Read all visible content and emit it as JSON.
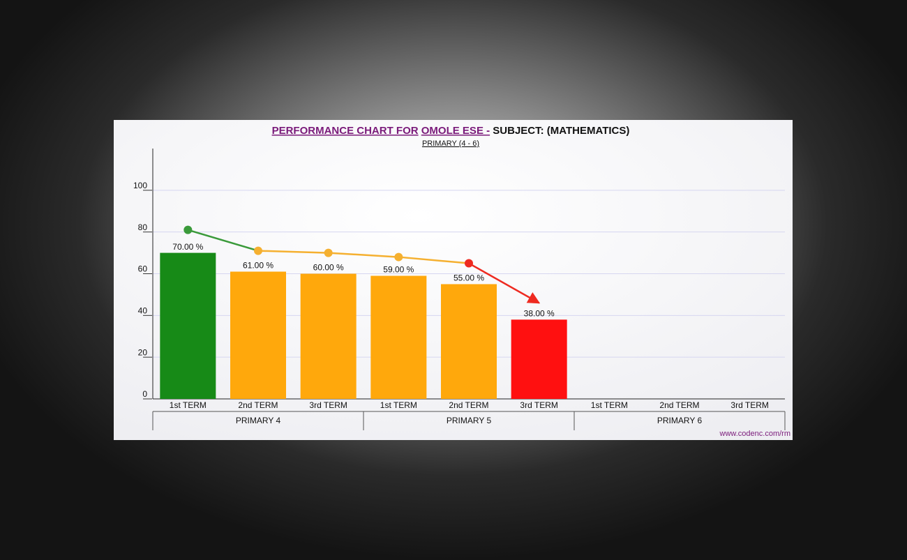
{
  "chart_data": {
    "type": "bar",
    "title_parts": [
      "PERFORMANCE CHART FOR",
      "OMOLE ESE -",
      "SUBJECT: (MATHEMATICS)"
    ],
    "subtitle": "PRIMARY (4 - 6)",
    "categories": [
      "1st TERM",
      "2nd TERM",
      "3rd TERM",
      "1st TERM",
      "2nd TERM",
      "3rd TERM",
      "1st TERM",
      "2nd TERM",
      "3rd TERM"
    ],
    "group_labels": [
      "PRIMARY 4",
      "PRIMARY 5",
      "PRIMARY 6"
    ],
    "values": [
      70,
      61,
      60,
      59,
      55,
      38,
      null,
      null,
      null
    ],
    "value_labels": [
      "70.00 %",
      "61.00 %",
      "60.00 %",
      "59.00 %",
      "55.00 %",
      "38.00 %",
      null,
      null,
      null
    ],
    "colors": [
      "#178a17",
      "#ffa80c",
      "#ffa80c",
      "#ffa80c",
      "#ffa80c",
      "#ff1010",
      null,
      null,
      null
    ],
    "trend": {
      "values": [
        81,
        71,
        70,
        68,
        65,
        46,
        null,
        null,
        null
      ],
      "colors": [
        "#3a9a3a",
        "#f5b030",
        "#f5b030",
        "#f5b030",
        "#ee2a20",
        null,
        null,
        null,
        null
      ]
    },
    "ylim": [
      0,
      120
    ],
    "yticks": [
      0,
      20,
      40,
      60,
      80,
      100
    ],
    "grid": true,
    "footer": "www.codenc.com/rm"
  }
}
